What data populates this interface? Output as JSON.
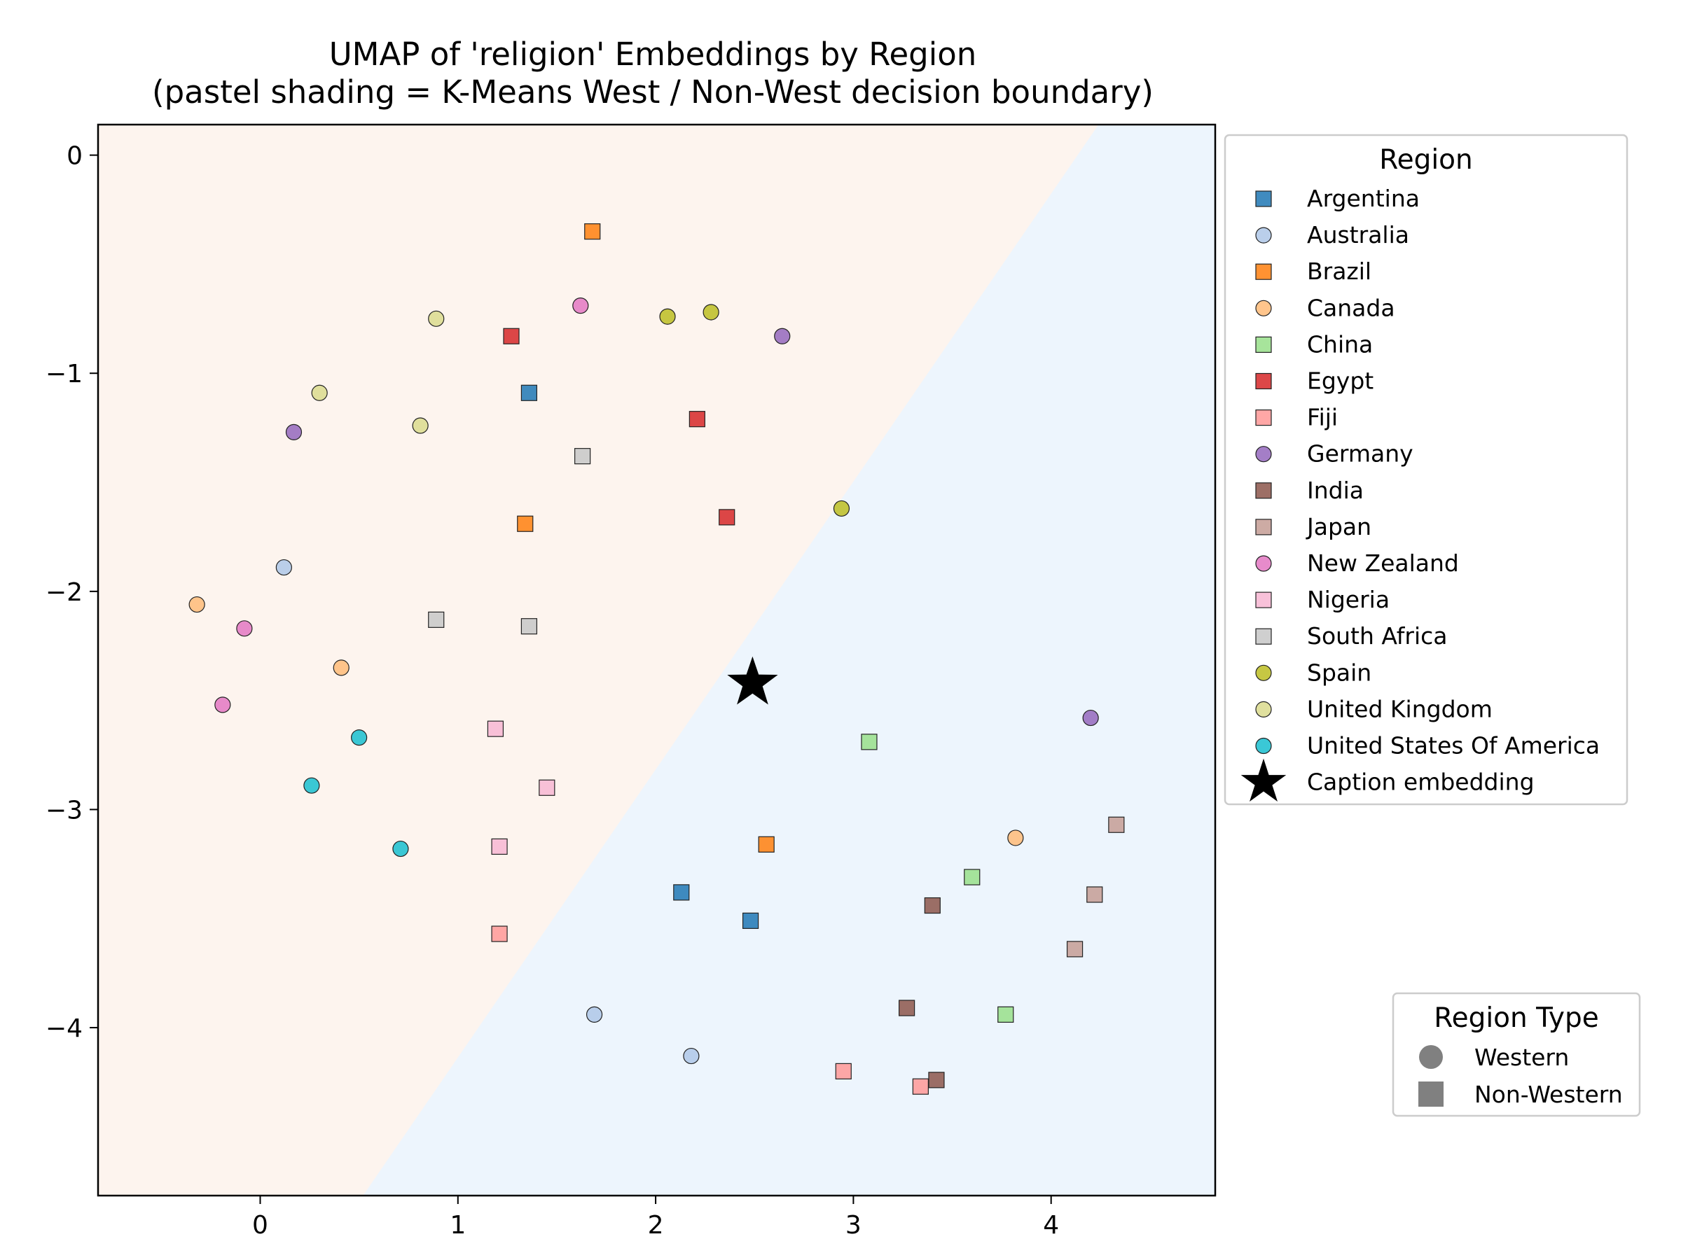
{
  "chart_data": {
    "type": "scatter",
    "title": "UMAP of 'religion' Embeddings by Region",
    "subtitle": "(pastel shading = K-Means West / Non-West decision boundary)",
    "xlabel": "",
    "ylabel": "",
    "xlim": [
      -0.82,
      4.83
    ],
    "ylim": [
      -4.77,
      0.14
    ],
    "x_ticks": [
      0,
      1,
      2,
      3,
      4
    ],
    "y_ticks": [
      0,
      -1,
      -2,
      -3,
      -4
    ],
    "x_tick_labels": [
      "0",
      "1",
      "2",
      "3",
      "4"
    ],
    "y_tick_labels": [
      "0",
      "−1",
      "−2",
      "−3",
      "−4"
    ],
    "grid": false,
    "boundary": {
      "line": [
        [
          0.52,
          -4.77
        ],
        [
          4.24,
          0.14
        ]
      ],
      "west_color": "#fdf4ee",
      "nonwest_color": "#edf5fd"
    },
    "legend": {
      "title": "Region",
      "placement": "outside-upper-right",
      "caption_label": "Caption embedding"
    },
    "type_legend": {
      "title": "Region Type",
      "placement": "outside-lower-right",
      "items": [
        {
          "label": "Western",
          "marker": "circle"
        },
        {
          "label": "Non-Western",
          "marker": "square"
        }
      ]
    },
    "series": [
      {
        "name": "Argentina",
        "marker": "square",
        "color": "#1f77b4",
        "points": [
          [
            1.36,
            -1.09
          ],
          [
            2.13,
            -3.38
          ],
          [
            2.48,
            -3.51
          ]
        ]
      },
      {
        "name": "Australia",
        "marker": "circle",
        "color": "#aec7e8",
        "points": [
          [
            0.12,
            -1.89
          ],
          [
            1.69,
            -3.94
          ],
          [
            2.18,
            -4.13
          ]
        ]
      },
      {
        "name": "Brazil",
        "marker": "square",
        "color": "#ff7f0e",
        "points": [
          [
            1.68,
            -0.35
          ],
          [
            1.34,
            -1.69
          ],
          [
            2.56,
            -3.16
          ]
        ]
      },
      {
        "name": "Canada",
        "marker": "circle",
        "color": "#ffbb78",
        "points": [
          [
            -0.32,
            -2.06
          ],
          [
            0.41,
            -2.35
          ],
          [
            3.82,
            -3.13
          ]
        ]
      },
      {
        "name": "China",
        "marker": "square",
        "color": "#98df8a",
        "points": [
          [
            3.08,
            -2.69
          ],
          [
            3.6,
            -3.31
          ],
          [
            3.77,
            -3.94
          ]
        ]
      },
      {
        "name": "Egypt",
        "marker": "square",
        "color": "#d62728",
        "points": [
          [
            1.27,
            -0.83
          ],
          [
            2.21,
            -1.21
          ],
          [
            2.36,
            -1.66
          ]
        ]
      },
      {
        "name": "Fiji",
        "marker": "square",
        "color": "#ff9896",
        "points": [
          [
            1.21,
            -3.57
          ],
          [
            2.95,
            -4.2
          ],
          [
            3.34,
            -4.27
          ]
        ]
      },
      {
        "name": "Germany",
        "marker": "circle",
        "color": "#9467bd",
        "points": [
          [
            0.17,
            -1.27
          ],
          [
            2.64,
            -0.83
          ],
          [
            4.2,
            -2.58
          ]
        ]
      },
      {
        "name": "India",
        "marker": "square",
        "color": "#8c564b",
        "points": [
          [
            3.4,
            -3.44
          ],
          [
            3.27,
            -3.91
          ],
          [
            3.42,
            -4.24
          ]
        ]
      },
      {
        "name": "Japan",
        "marker": "square",
        "color": "#c49c94",
        "points": [
          [
            4.33,
            -3.07
          ],
          [
            4.22,
            -3.39
          ],
          [
            4.12,
            -3.64
          ]
        ]
      },
      {
        "name": "New Zealand",
        "marker": "circle",
        "color": "#e377c2",
        "points": [
          [
            1.62,
            -0.69
          ],
          [
            -0.08,
            -2.17
          ],
          [
            -0.19,
            -2.52
          ]
        ]
      },
      {
        "name": "Nigeria",
        "marker": "square",
        "color": "#f7b6d2",
        "points": [
          [
            1.19,
            -2.63
          ],
          [
            1.45,
            -2.9
          ],
          [
            1.21,
            -3.17
          ]
        ]
      },
      {
        "name": "South Africa",
        "marker": "square",
        "color": "#c7c7c7",
        "points": [
          [
            1.63,
            -1.38
          ],
          [
            0.89,
            -2.13
          ],
          [
            1.36,
            -2.16
          ]
        ]
      },
      {
        "name": "Spain",
        "marker": "circle",
        "color": "#bcbd22",
        "points": [
          [
            2.06,
            -0.74
          ],
          [
            2.28,
            -0.72
          ],
          [
            2.94,
            -1.62
          ]
        ]
      },
      {
        "name": "United Kingdom",
        "marker": "circle",
        "color": "#dbdb8d",
        "points": [
          [
            0.89,
            -0.75
          ],
          [
            0.3,
            -1.09
          ],
          [
            0.81,
            -1.24
          ]
        ]
      },
      {
        "name": "United States Of America",
        "marker": "circle",
        "color": "#17becf",
        "points": [
          [
            0.5,
            -2.67
          ],
          [
            0.26,
            -2.89
          ],
          [
            0.71,
            -3.18
          ]
        ]
      }
    ],
    "caption_embedding": {
      "x": 2.49,
      "y": -2.42,
      "marker": "star",
      "color": "#000000"
    }
  }
}
